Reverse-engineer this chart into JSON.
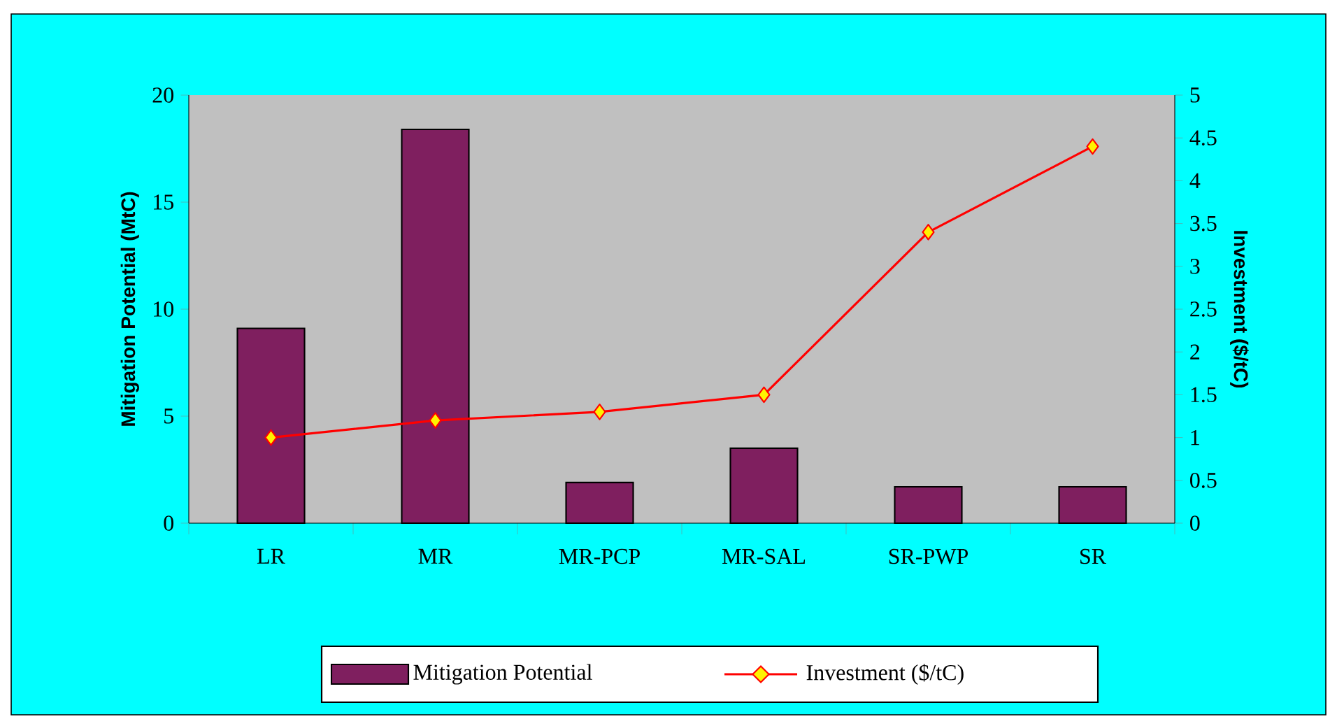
{
  "chart_data": {
    "type": "bar",
    "categories": [
      "LR",
      "MR",
      "MR-PCP",
      "MR-SAL",
      "SR-PWP",
      "SR"
    ],
    "series": [
      {
        "name": "Mitigation Potential",
        "color": "#7f1f5f",
        "values": [
          9.1,
          18.4,
          1.9,
          3.5,
          1.7,
          1.7
        ]
      },
      {
        "name": "Investment ($/tC)",
        "type": "line",
        "axis": "y2",
        "color": "#ff0000",
        "values": [
          1.0,
          1.2,
          1.3,
          1.5,
          3.4,
          4.4
        ]
      }
    ],
    "ylabel": "Mitigation Potential (MtC)",
    "y2label": "Investment ($/tC)",
    "ylim": [
      0,
      20
    ],
    "yticks": [
      0,
      5,
      10,
      15,
      20
    ],
    "y2lim": [
      0,
      5
    ],
    "y2ticks": [
      0,
      0.5,
      1,
      1.5,
      2,
      2.5,
      3,
      3.5,
      4,
      4.5,
      5
    ],
    "legend": "bottom",
    "grid": false,
    "marker": "diamond",
    "line_style": "solid"
  }
}
